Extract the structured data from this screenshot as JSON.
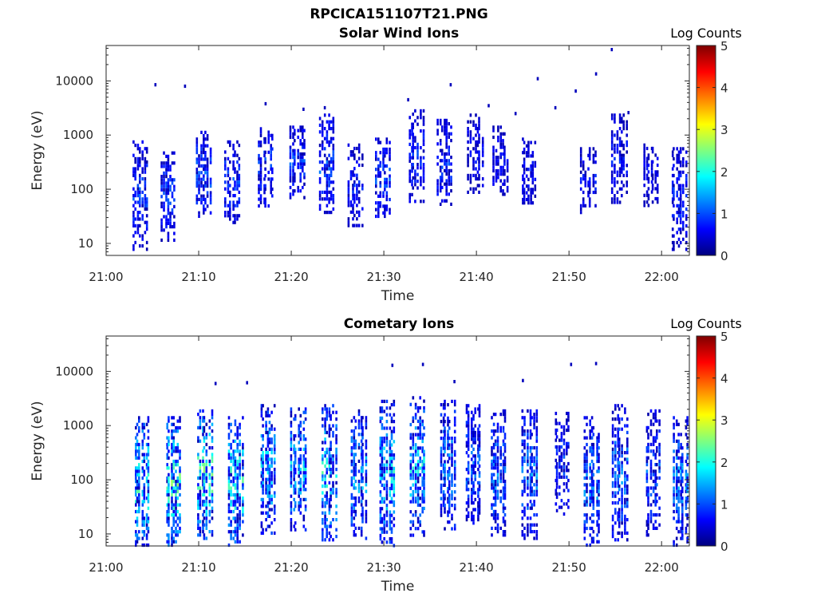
{
  "figure": {
    "title": "RPCICA151107T21.PNG"
  },
  "colormap": {
    "name": "jet",
    "stops": [
      "#00007f",
      "#0000ff",
      "#007fff",
      "#00ffff",
      "#7fff7f",
      "#ffff00",
      "#ff7f00",
      "#ff0000",
      "#7f0000"
    ]
  },
  "chart_data": [
    {
      "type": "heatmap",
      "title": "Solar Wind Ions",
      "xlabel": "Time",
      "ylabel": "Energy (eV)",
      "x_ticks": [
        "21:00",
        "21:10",
        "21:20",
        "21:30",
        "21:40",
        "21:50",
        "22:00"
      ],
      "x_tick_values_min": [
        0,
        10,
        20,
        30,
        40,
        50,
        60
      ],
      "xlim_min": [
        0,
        63
      ],
      "y_scale": "log",
      "y_ticks": [
        "10",
        "100",
        "1000",
        "10000"
      ],
      "y_tick_values": [
        10,
        100,
        1000,
        10000
      ],
      "ylim": [
        6,
        45000
      ],
      "colorbar": {
        "title": "Log Counts",
        "ticks": [
          "0",
          "1",
          "2",
          "3",
          "4",
          "5"
        ],
        "range": [
          0,
          5
        ]
      },
      "bursts": [
        {
          "t": 3.6,
          "emin": 8,
          "emax": 800,
          "intensity": 0.8
        },
        {
          "t": 6.6,
          "emin": 12,
          "emax": 500,
          "intensity": 0.8
        },
        {
          "t": 10.4,
          "emin": 30,
          "emax": 1200,
          "intensity": 0.9
        },
        {
          "t": 13.6,
          "emin": 25,
          "emax": 800,
          "intensity": 0.8
        },
        {
          "t": 17.2,
          "emin": 50,
          "emax": 1400,
          "intensity": 0.8
        },
        {
          "t": 20.6,
          "emin": 70,
          "emax": 1500,
          "intensity": 0.8
        },
        {
          "t": 23.8,
          "emin": 40,
          "emax": 2500,
          "intensity": 0.9
        },
        {
          "t": 26.8,
          "emin": 20,
          "emax": 700,
          "intensity": 0.6
        },
        {
          "t": 29.8,
          "emin": 30,
          "emax": 900,
          "intensity": 0.8
        },
        {
          "t": 33.4,
          "emin": 60,
          "emax": 3000,
          "intensity": 0.7
        },
        {
          "t": 36.5,
          "emin": 50,
          "emax": 2000,
          "intensity": 0.7
        },
        {
          "t": 39.8,
          "emin": 90,
          "emax": 2500,
          "intensity": 0.5
        },
        {
          "t": 42.5,
          "emin": 80,
          "emax": 1500,
          "intensity": 0.5
        },
        {
          "t": 45.6,
          "emin": 60,
          "emax": 900,
          "intensity": 0.6
        },
        {
          "t": 52.0,
          "emin": 40,
          "emax": 600,
          "intensity": 0.6
        },
        {
          "t": 55.4,
          "emin": 60,
          "emax": 2500,
          "intensity": 0.6
        },
        {
          "t": 58.8,
          "emin": 50,
          "emax": 700,
          "intensity": 0.5
        },
        {
          "t": 61.8,
          "emin": 8,
          "emax": 600,
          "intensity": 0.7
        }
      ],
      "isolated_points": [
        {
          "t": 5.3,
          "e": 8500
        },
        {
          "t": 8.5,
          "e": 8000
        },
        {
          "t": 17.2,
          "e": 3800
        },
        {
          "t": 21.3,
          "e": 3000
        },
        {
          "t": 23.6,
          "e": 3200
        },
        {
          "t": 32.6,
          "e": 4500
        },
        {
          "t": 37.2,
          "e": 8500
        },
        {
          "t": 46.6,
          "e": 11000
        },
        {
          "t": 48.5,
          "e": 3200
        },
        {
          "t": 50.7,
          "e": 6500
        },
        {
          "t": 52.9,
          "e": 13500
        },
        {
          "t": 54.6,
          "e": 38000
        },
        {
          "t": 41.3,
          "e": 3500
        },
        {
          "t": 44.2,
          "e": 2500
        },
        {
          "t": 56.4,
          "e": 2600
        }
      ]
    },
    {
      "type": "heatmap",
      "title": "Cometary Ions",
      "xlabel": "Time",
      "ylabel": "Energy (eV)",
      "x_ticks": [
        "21:00",
        "21:10",
        "21:20",
        "21:30",
        "21:40",
        "21:50",
        "22:00"
      ],
      "x_tick_values_min": [
        0,
        10,
        20,
        30,
        40,
        50,
        60
      ],
      "xlim_min": [
        0,
        63
      ],
      "y_scale": "log",
      "y_ticks": [
        "10",
        "100",
        "1000",
        "10000"
      ],
      "y_tick_values": [
        10,
        100,
        1000,
        10000
      ],
      "ylim": [
        6,
        45000
      ],
      "colorbar": {
        "title": "Log Counts",
        "ticks": [
          "0",
          "1",
          "2",
          "3",
          "4",
          "5"
        ],
        "range": [
          0,
          5
        ]
      },
      "bursts": [
        {
          "t": 3.8,
          "emin": 6,
          "emax": 1500,
          "intensity": 1.8
        },
        {
          "t": 7.2,
          "emin": 6,
          "emax": 1500,
          "intensity": 2.0
        },
        {
          "t": 10.6,
          "emin": 8,
          "emax": 2000,
          "intensity": 2.0
        },
        {
          "t": 13.9,
          "emin": 6,
          "emax": 1500,
          "intensity": 1.9
        },
        {
          "t": 17.4,
          "emin": 10,
          "emax": 2500,
          "intensity": 1.6
        },
        {
          "t": 20.7,
          "emin": 12,
          "emax": 2500,
          "intensity": 1.5
        },
        {
          "t": 24.0,
          "emin": 8,
          "emax": 2500,
          "intensity": 1.7
        },
        {
          "t": 27.2,
          "emin": 8,
          "emax": 2000,
          "intensity": 1.3
        },
        {
          "t": 30.3,
          "emin": 6,
          "emax": 3000,
          "intensity": 1.6
        },
        {
          "t": 33.6,
          "emin": 10,
          "emax": 3500,
          "intensity": 1.6
        },
        {
          "t": 36.8,
          "emin": 12,
          "emax": 3000,
          "intensity": 1.2
        },
        {
          "t": 39.6,
          "emin": 15,
          "emax": 2500,
          "intensity": 1.0
        },
        {
          "t": 42.3,
          "emin": 10,
          "emax": 2000,
          "intensity": 1.1
        },
        {
          "t": 45.7,
          "emin": 8,
          "emax": 2000,
          "intensity": 1.1
        },
        {
          "t": 49.2,
          "emin": 25,
          "emax": 1800,
          "intensity": 0.8
        },
        {
          "t": 52.4,
          "emin": 6,
          "emax": 1500,
          "intensity": 1.2
        },
        {
          "t": 55.4,
          "emin": 8,
          "emax": 2500,
          "intensity": 1.1
        },
        {
          "t": 59.0,
          "emin": 10,
          "emax": 2000,
          "intensity": 0.9
        },
        {
          "t": 62.0,
          "emin": 6,
          "emax": 1500,
          "intensity": 1.2
        }
      ],
      "isolated_points": [
        {
          "t": 11.8,
          "e": 6000
        },
        {
          "t": 15.2,
          "e": 6200
        },
        {
          "t": 30.9,
          "e": 13000
        },
        {
          "t": 34.2,
          "e": 13500
        },
        {
          "t": 37.6,
          "e": 6500
        },
        {
          "t": 45.0,
          "e": 6800
        },
        {
          "t": 50.2,
          "e": 13500
        },
        {
          "t": 52.9,
          "e": 14000
        }
      ]
    }
  ]
}
